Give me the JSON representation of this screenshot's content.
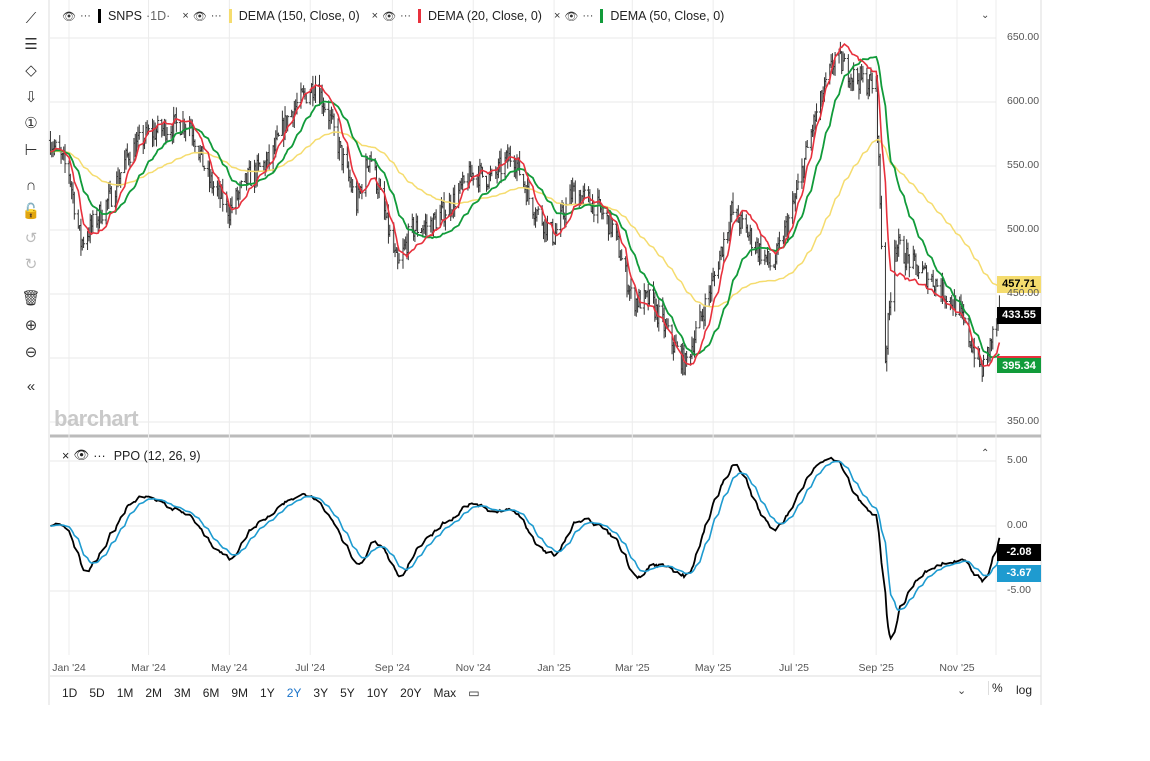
{
  "legend": {
    "symbol": "SNPS",
    "interval": "·1D·",
    "ind1": "DEMA (150, Close, 0)",
    "ind2": "DEMA (20, Close, 0)",
    "ind3": "DEMA (50, Close, 0)",
    "ppo": "PPO (12, 26, 9)",
    "more": "···",
    "close": "×",
    "eye": "👁"
  },
  "colors": {
    "dema150": "#f5dc6e",
    "dema20": "#e8313d",
    "dema50": "#119b3a",
    "ppo": "#000000",
    "signal": "#1e9bd0",
    "price": "#222222"
  },
  "tags": {
    "dema150": "457.71",
    "last": "433.55",
    "dema50": "395.34",
    "ppo": "-2.08",
    "signal": "-3.67"
  },
  "watermark": "barchart",
  "range_buttons": [
    "1D",
    "5D",
    "1M",
    "2M",
    "3M",
    "6M",
    "9M",
    "1Y",
    "2Y",
    "3Y",
    "5Y",
    "10Y",
    "20Y",
    "Max"
  ],
  "active_range": "2Y",
  "right_buttons": {
    "pct": "%",
    "log": "log"
  },
  "toolbar": [
    "trend-line",
    "fib",
    "shapes",
    "arrow-down",
    "annotation",
    "measure",
    "magnet",
    "lock",
    "undo",
    "redo",
    "trash",
    "zoom-in",
    "zoom-out",
    "collapse"
  ],
  "chart_data": [
    {
      "type": "ohlc",
      "title": "SNPS 1D",
      "ylim": [
        350,
        650
      ],
      "yticks": [
        "650.00",
        "600.00",
        "550.00",
        "500.00",
        "450.00",
        "350.00"
      ],
      "xticks": [
        "Jan '24",
        "Mar '24",
        "May '24",
        "Jul '24",
        "Sep '24",
        "Nov '24",
        "Jan '25",
        "Mar '25",
        "May '25",
        "Jul '25",
        "Sep '25",
        "Nov '25"
      ],
      "close_keypoints": [
        [
          "2023-12-18",
          570
        ],
        [
          "2024-01-01",
          545
        ],
        [
          "2024-01-10",
          490
        ],
        [
          "2024-02-01",
          525
        ],
        [
          "2024-02-15",
          560
        ],
        [
          "2024-03-01",
          575
        ],
        [
          "2024-03-15",
          580
        ],
        [
          "2024-04-01",
          585
        ],
        [
          "2024-04-15",
          540
        ],
        [
          "2024-05-01",
          515
        ],
        [
          "2024-05-15",
          540
        ],
        [
          "2024-06-01",
          555
        ],
        [
          "2024-06-15",
          590
        ],
        [
          "2024-07-05",
          615
        ],
        [
          "2024-07-15",
          590
        ],
        [
          "2024-08-05",
          520
        ],
        [
          "2024-08-15",
          560
        ],
        [
          "2024-09-05",
          470
        ],
        [
          "2024-09-15",
          500
        ],
        [
          "2024-10-01",
          505
        ],
        [
          "2024-10-15",
          520
        ],
        [
          "2024-11-01",
          545
        ],
        [
          "2024-11-15",
          540
        ],
        [
          "2024-12-01",
          560
        ],
        [
          "2024-12-15",
          520
        ],
        [
          "2025-01-01",
          495
        ],
        [
          "2025-01-15",
          530
        ],
        [
          "2025-02-01",
          520
        ],
        [
          "2025-02-15",
          500
        ],
        [
          "2025-03-01",
          445
        ],
        [
          "2025-03-15",
          445
        ],
        [
          "2025-04-01",
          410
        ],
        [
          "2025-04-10",
          395
        ],
        [
          "2025-05-01",
          460
        ],
        [
          "2025-05-15",
          515
        ],
        [
          "2025-06-01",
          490
        ],
        [
          "2025-06-15",
          470
        ],
        [
          "2025-07-01",
          520
        ],
        [
          "2025-07-15",
          580
        ],
        [
          "2025-08-01",
          635
        ],
        [
          "2025-08-15",
          620
        ],
        [
          "2025-09-01",
          612
        ],
        [
          "2025-09-08",
          400
        ],
        [
          "2025-09-15",
          490
        ],
        [
          "2025-10-01",
          470
        ],
        [
          "2025-10-15",
          460
        ],
        [
          "2025-11-01",
          440
        ],
        [
          "2025-11-20",
          390
        ],
        [
          "2025-12-03",
          433.55
        ]
      ],
      "series": [
        {
          "name": "DEMA (150, Close, 0)",
          "last": 457.71
        },
        {
          "name": "DEMA (20, Close, 0)",
          "last": 395.34
        },
        {
          "name": "DEMA (50, Close, 0)",
          "last": 395.34
        }
      ]
    },
    {
      "type": "line",
      "title": "PPO (12, 26, 9)",
      "ylim": [
        -10,
        6
      ],
      "yticks": [
        "5.00",
        "0.00",
        "-5.00"
      ],
      "series": [
        {
          "name": "PPO",
          "last": -2.08
        },
        {
          "name": "Signal",
          "last": -3.67
        }
      ]
    }
  ]
}
